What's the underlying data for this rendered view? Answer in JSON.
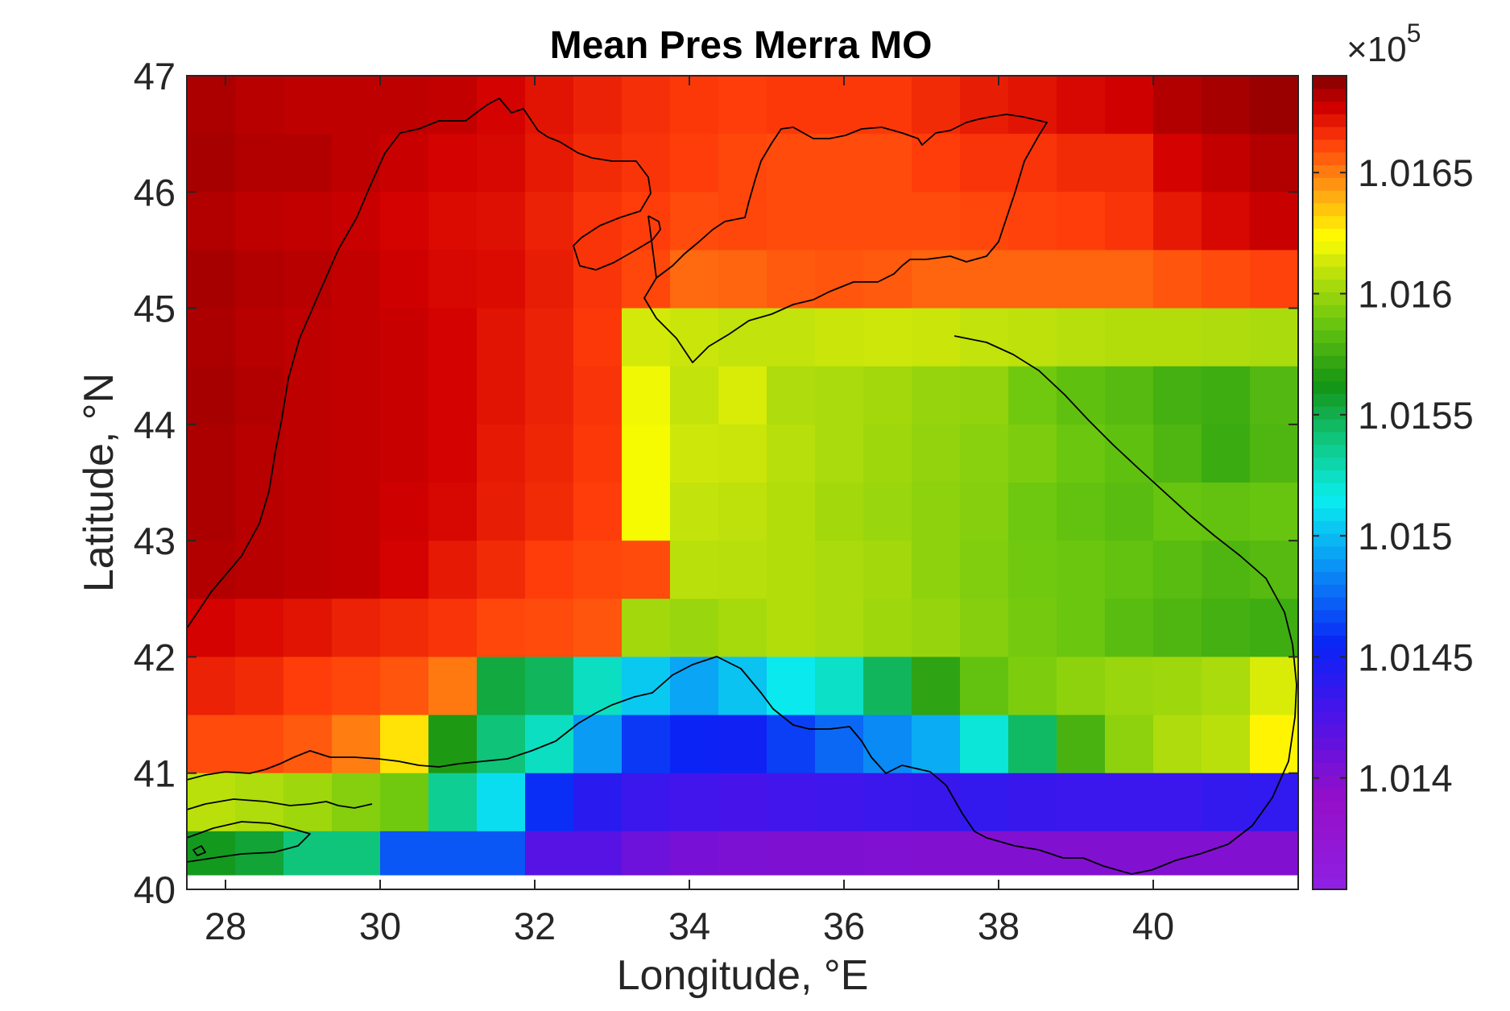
{
  "chart_data": {
    "type": "heatmap",
    "title": "Mean Pres Merra MO",
    "xlabel": "Longitude, °E",
    "ylabel": "Latitude, °N",
    "xlim": [
      27.5,
      41.875
    ],
    "ylim": [
      40,
      47
    ],
    "xticks": [
      28,
      30,
      32,
      34,
      36,
      38,
      40
    ],
    "yticks": [
      40,
      41,
      42,
      43,
      44,
      45,
      46,
      47
    ],
    "x_tick_labels": [
      "28",
      "30",
      "32",
      "34",
      "36",
      "38",
      "40"
    ],
    "y_tick_labels": [
      "40",
      "41",
      "42",
      "43",
      "44",
      "45",
      "46",
      "47"
    ],
    "cell_width_deg": 0.625,
    "cell_height_deg": 0.5,
    "x_centers": [
      27.8125,
      28.4375,
      29.0625,
      29.6875,
      30.3125,
      30.9375,
      31.5625,
      32.1875,
      32.8125,
      33.4375,
      34.0625,
      34.6875,
      35.3125,
      35.9375,
      36.5625,
      37.1875,
      37.8125,
      38.4375,
      39.0625,
      39.6875,
      40.3125,
      40.9375,
      41.5625
    ],
    "y_centers_top_to_bottom": [
      46.75,
      46.25,
      45.75,
      45.25,
      44.75,
      44.25,
      43.75,
      43.25,
      42.75,
      42.25,
      41.75,
      41.25,
      40.75,
      40.25
    ],
    "row_heights_deg": [
      0.5,
      0.5,
      0.5,
      0.5,
      0.5,
      0.5,
      0.5,
      0.5,
      0.5,
      0.5,
      0.5,
      0.5,
      0.5,
      0.25
    ],
    "values_top_to_bottom": [
      [
        101683,
        101681,
        101680,
        101680,
        101680,
        101679,
        101676,
        101672,
        101669,
        101666,
        101664,
        101663,
        101664,
        101664,
        101664,
        101667,
        101670,
        101672,
        101675,
        101677,
        101682,
        101684,
        101686
      ],
      [
        101684,
        101682,
        101682,
        101680,
        101678,
        101676,
        101675,
        101671,
        101667,
        101665,
        101663,
        101661,
        101660,
        101660,
        101660,
        101663,
        101665,
        101665,
        101667,
        101667,
        101676,
        101679,
        101682
      ],
      [
        101682,
        101680,
        101679,
        101678,
        101676,
        101674,
        101673,
        101669,
        101665,
        101663,
        101660,
        101661,
        101660,
        101660,
        101660,
        101660,
        101661,
        101662,
        101663,
        101665,
        101671,
        101675,
        101678
      ],
      [
        101684,
        101682,
        101681,
        101679,
        101677,
        101675,
        101674,
        101670,
        101665,
        101661,
        101654,
        101655,
        101657,
        101658,
        101657,
        101655,
        101655,
        101655,
        101655,
        101655,
        101658,
        101660,
        101662
      ],
      [
        101683,
        101681,
        101680,
        101679,
        101678,
        101676,
        101672,
        101669,
        101664,
        101614,
        101612,
        101610,
        101610,
        101612,
        101613,
        101612,
        101610,
        101609,
        101607,
        101606,
        101606,
        101605,
        101604
      ],
      [
        101684,
        101682,
        101680,
        101679,
        101678,
        101676,
        101672,
        101669,
        101665,
        101620,
        101610,
        101615,
        101605,
        101604,
        101602,
        101599,
        101598,
        101590,
        101585,
        101582,
        101577,
        101575,
        101581
      ],
      [
        101683,
        101681,
        101680,
        101679,
        101678,
        101676,
        101671,
        101668,
        101664,
        101621,
        101613,
        101612,
        101607,
        101604,
        101601,
        101598,
        101596,
        101593,
        101588,
        101585,
        101580,
        101574,
        101580
      ],
      [
        101683,
        101681,
        101680,
        101679,
        101677,
        101675,
        101670,
        101667,
        101663,
        101621,
        101610,
        101609,
        101606,
        101602,
        101600,
        101597,
        101595,
        101589,
        101586,
        101583,
        101587,
        101586,
        101587
      ],
      [
        101682,
        101681,
        101680,
        101679,
        101676,
        101671,
        101667,
        101663,
        101661,
        101660,
        101608,
        101607,
        101606,
        101604,
        101602,
        101597,
        101594,
        101590,
        101588,
        101586,
        101583,
        101580,
        101582
      ],
      [
        101676,
        101674,
        101672,
        101669,
        101667,
        101665,
        101661,
        101660,
        101658,
        101602,
        101600,
        101603,
        101606,
        101604,
        101601,
        101599,
        101595,
        101591,
        101588,
        101583,
        101580,
        101577,
        101575
      ],
      [
        101669,
        101667,
        101663,
        101661,
        101658,
        101651,
        101553,
        101547,
        101525,
        101504,
        101493,
        101502,
        101514,
        101524,
        101547,
        101570,
        101586,
        101593,
        101597,
        101600,
        101601,
        101604,
        101615
      ],
      [
        101660,
        101660,
        101657,
        101650,
        101629,
        101565,
        101541,
        101525,
        101490,
        101461,
        101454,
        101452,
        101463,
        101475,
        101485,
        101495,
        101520,
        101545,
        101578,
        101597,
        101605,
        101608,
        101625
      ],
      [
        101608,
        101605,
        101601,
        101595,
        101590,
        101535,
        101510,
        101458,
        101441,
        101433,
        101430,
        101428,
        101430,
        101431,
        101433,
        101434,
        101436,
        101434,
        101433,
        101433,
        101433,
        101436,
        101438
      ],
      [
        101560,
        101555,
        101540,
        101540,
        101470,
        101470,
        101470,
        101420,
        101420,
        101410,
        101405,
        101403,
        101402,
        101402,
        101401,
        101400,
        101400,
        101400,
        101400,
        101400,
        101400,
        101400,
        101400
      ]
    ],
    "colorbar": {
      "min": 101354,
      "max": 101690,
      "tick_values": [
        101400,
        101450,
        101500,
        101550,
        101600,
        101650
      ],
      "tick_labels": [
        "1.014",
        "1.0145",
        "1.015",
        "1.0155",
        "1.016",
        "1.0165"
      ],
      "exponent_label": "×10",
      "exponent_power": "5",
      "colormap": "jet-like: purple → blue → cyan → green → yellow → orange → red → dark red"
    },
    "coastline_color": "#000000",
    "grid": false
  }
}
